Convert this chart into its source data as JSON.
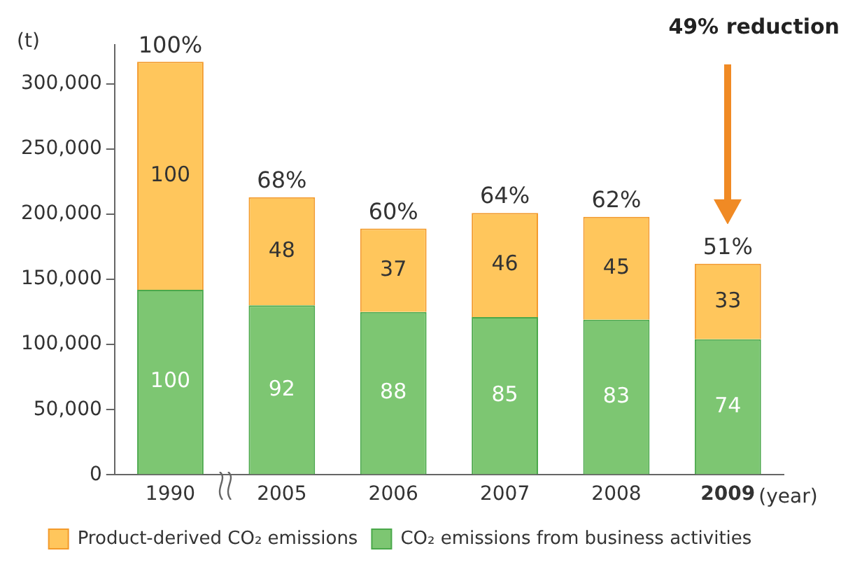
{
  "chart_data": {
    "type": "bar",
    "stacked": true,
    "ylabel": "(t)",
    "xlabel": "(year)",
    "categories": [
      "1990",
      "2005",
      "2006",
      "2007",
      "2008",
      "2009"
    ],
    "series": [
      {
        "name": "CO₂ emissions from business activities",
        "color": "#7dc672",
        "values": [
          142000,
          130000,
          125000,
          121000,
          119000,
          104000
        ]
      },
      {
        "name": "Product-derived CO₂ emissions",
        "color": "#ffc65c",
        "values": [
          175000,
          83000,
          64000,
          80000,
          79000,
          58000
        ]
      }
    ],
    "annotations": [
      "49% reduction",
      "100",
      "92",
      "88",
      "85",
      "83",
      "74",
      "100",
      "48",
      "37",
      "46",
      "45",
      "33",
      {
        "text": "100%",
        "x": "1990",
        "y": 317000
      },
      {
        "text": "68%",
        "x": "2005",
        "y": 213000
      },
      {
        "text": "60%",
        "x": "2006",
        "y": 189000
      },
      {
        "text": "64%",
        "x": "2007",
        "y": 201000
      },
      {
        "text": "62%",
        "x": "2008",
        "y": 198000
      },
      {
        "text": "51%",
        "x": "2009",
        "y": 162000
      }
    ],
    "ylim": [
      0,
      330000
    ],
    "yticks": [
      {
        "value": 0,
        "label": "0"
      },
      {
        "value": 50000,
        "label": "50,000"
      },
      {
        "value": 100000,
        "label": "100,000"
      },
      {
        "value": 150000,
        "label": "150,000"
      },
      {
        "value": 200000,
        "label": "200,000"
      },
      {
        "value": 250000,
        "label": "250,000"
      },
      {
        "value": 300000,
        "label": "300,000"
      }
    ],
    "legend": "bottom"
  }
}
